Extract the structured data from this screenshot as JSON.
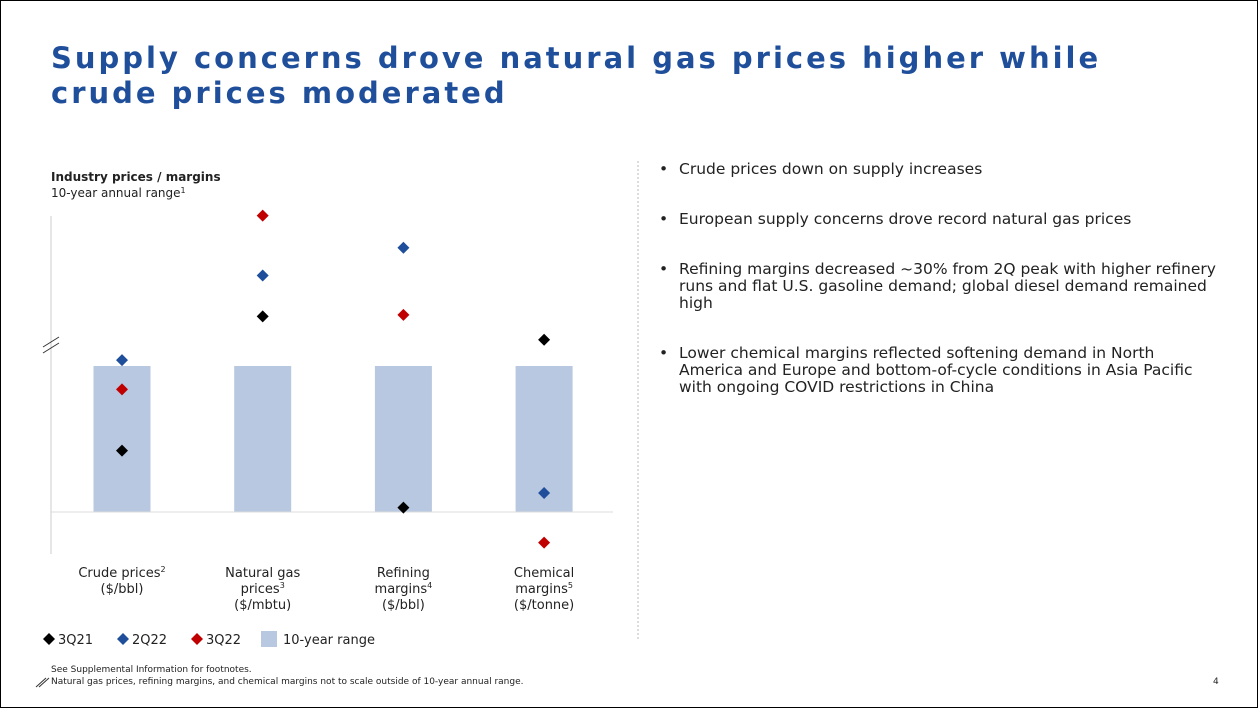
{
  "title": "Supply concerns drove natural gas prices higher while crude prices moderated",
  "chart_data": {
    "type": "range-dot",
    "title": "Industry prices / margins",
    "subtitle": "10-year annual range",
    "subtitle_note": "1",
    "categories": [
      [
        [
          "Crude prices",
          "2"
        ],
        [
          "($/bbl)"
        ]
      ],
      [
        [
          "Natural gas"
        ],
        [
          "prices",
          "3"
        ],
        [
          "($/mbtu)"
        ]
      ],
      [
        [
          "Refining"
        ],
        [
          "margins",
          "4"
        ],
        [
          "($/bbl)"
        ]
      ],
      [
        [
          "Chemical"
        ],
        [
          "margins",
          "5"
        ],
        [
          "($/tonne)"
        ]
      ]
    ],
    "range": {
      "name": "10-year range",
      "color": "#b8c8e0",
      "low": [
        0,
        0,
        0,
        0
      ],
      "high": [
        100,
        100,
        100,
        100
      ]
    },
    "series": [
      {
        "name": "3Q21",
        "color": "#000000",
        "values": [
          42,
          134,
          3,
          118
        ]
      },
      {
        "name": "2Q22",
        "color": "#1f4e9a",
        "values": [
          104,
          162,
          181,
          13
        ]
      },
      {
        "name": "3Q22",
        "color": "#c00000",
        "values": [
          84,
          203,
          135,
          -21
        ]
      }
    ],
    "ylim": [
      -30,
      210
    ]
  },
  "bullets": [
    "Crude prices down on supply increases",
    "European supply concerns drove record natural gas prices",
    "Refining margins decreased ~30% from 2Q peak with higher refinery runs and flat U.S. gasoline demand; global diesel demand remained high",
    "Lower chemical margins reflected softening demand in North America and Europe and bottom-of-cycle conditions in Asia Pacific with ongoing COVID restrictions in China"
  ],
  "footnotes": [
    "See Supplemental Information for footnotes.",
    "Natural gas prices, refining margins, and chemical margins not to scale outside of 10-year annual range."
  ],
  "page_number": "4"
}
